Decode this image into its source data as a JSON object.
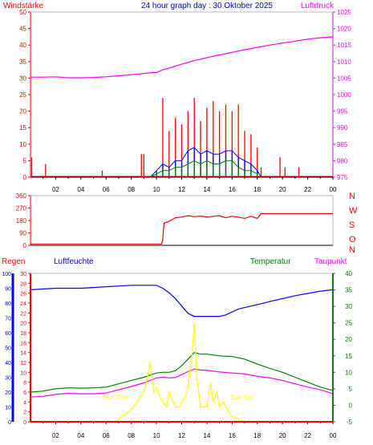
{
  "title": "24 hour graph day : 30 Oktober 2025",
  "x_ticks": [
    "02",
    "04",
    "06",
    "08",
    "10",
    "12",
    "14",
    "16",
    "18",
    "20",
    "22",
    "00"
  ],
  "chart_data": [
    {
      "type": "line",
      "title": "24 hour graph day : 30 Oktober 2025",
      "panel": "wind_pressure",
      "left_axis_label": "Windstärke",
      "right_axis_label": "Luftdruck",
      "left_ticks": [
        "50",
        "45",
        "40",
        "35",
        "30",
        "25",
        "20",
        "15",
        "10",
        "5",
        "0"
      ],
      "right_ticks": [
        "1025",
        "1020",
        "1015",
        "1010",
        "1005",
        "1000",
        "995",
        "990",
        "985",
        "980",
        "975"
      ],
      "ylim_left": [
        0,
        50
      ],
      "ylim_right": [
        975,
        1025
      ],
      "x_range_hours": [
        0,
        24
      ],
      "colors": {
        "gust": "#ff0000",
        "wind": "#008000",
        "avg": "#0000ff",
        "pressure": "#ff00ff"
      },
      "series": [
        {
          "name": "Luftdruck",
          "color": "#ff00ff",
          "x": [
            0,
            1,
            2,
            3,
            4,
            5,
            6,
            7,
            8,
            9,
            9.5,
            10,
            10.5,
            11,
            12,
            13,
            14,
            15,
            16,
            17,
            18,
            19,
            20,
            21,
            22,
            23,
            24
          ],
          "y": [
            1005.3,
            1005.3,
            1005.4,
            1005.1,
            1005.1,
            1005.2,
            1005.4,
            1005.7,
            1006,
            1006.4,
            1006.6,
            1006.7,
            1007.5,
            1008,
            1009.2,
            1010.3,
            1011.2,
            1012,
            1012.8,
            1013.6,
            1014.3,
            1015,
            1015.6,
            1016.2,
            1016.8,
            1017.2,
            1017.5
          ]
        },
        {
          "name": "Böen",
          "color": "#ff0000",
          "x": [
            0.1,
            1.2,
            5.7,
            8.8,
            9,
            10.5,
            11,
            11.5,
            12,
            12.5,
            13,
            13.5,
            14,
            14.5,
            15,
            15.5,
            16,
            16.5,
            17,
            17.5,
            18,
            18.3,
            19.8,
            20.2,
            21.3
          ],
          "y": [
            6,
            4,
            2,
            7,
            7,
            24,
            14,
            18,
            16,
            20,
            24,
            17,
            21,
            23,
            20,
            22,
            20,
            22,
            14,
            13,
            9,
            3,
            6,
            3,
            3
          ]
        },
        {
          "name": "Windgeschwindigkeit",
          "color": "#0000ff",
          "x": [
            9.5,
            10,
            10.5,
            11,
            11.5,
            12,
            12.5,
            13,
            13.5,
            14,
            14.5,
            15,
            15.5,
            16,
            16.5,
            17,
            17.5,
            18,
            18.3
          ],
          "y": [
            0,
            2,
            4,
            3,
            5,
            5,
            8,
            9,
            7,
            8,
            7,
            7,
            8,
            8,
            6,
            5,
            4,
            2,
            0
          ]
        },
        {
          "name": "Wind",
          "color": "#008000",
          "x": [
            9.5,
            10,
            10.5,
            11,
            11.5,
            12,
            12.5,
            13,
            13.5,
            14,
            14.5,
            15,
            15.5,
            16,
            16.5,
            17,
            17.5,
            18
          ],
          "y": [
            0,
            1,
            2,
            2,
            3,
            3,
            4,
            5,
            4,
            5,
            4,
            4,
            5,
            5,
            3,
            2,
            2,
            1
          ]
        }
      ]
    },
    {
      "type": "line",
      "panel": "wind_direction",
      "left_ticks": [
        "360",
        "270",
        "180",
        "90",
        "0"
      ],
      "right_labels": [
        "N",
        "W",
        "S",
        "O",
        "N"
      ],
      "ylim": [
        0,
        360
      ],
      "x_range_hours": [
        0,
        24
      ],
      "series": [
        {
          "name": "Windrichtung",
          "color": "#ff0000",
          "x": [
            0,
            10.4,
            10.5,
            10.55,
            10.6,
            11,
            11.5,
            12,
            12.5,
            13,
            13.5,
            14,
            14.5,
            15,
            15.5,
            16,
            16.5,
            17,
            17.5,
            18,
            18.3,
            24
          ],
          "y": [
            10,
            10,
            40,
            110,
            160,
            175,
            200,
            205,
            215,
            208,
            212,
            205,
            210,
            215,
            200,
            210,
            205,
            195,
            210,
            195,
            230,
            230
          ]
        }
      ]
    },
    {
      "type": "line",
      "panel": "humidity_temperature_rain",
      "labels": {
        "rain": "Regen",
        "humidity": "Luftfeuchte",
        "temperature": "Temperatur",
        "dewpoint": "Taupunkt"
      },
      "humidity_ticks": [
        "100",
        "90",
        "80",
        "70",
        "60",
        "50",
        "40",
        "30",
        "20",
        "10",
        "0"
      ],
      "rain_ticks": [
        "30",
        "28",
        "26",
        "24",
        "22",
        "20",
        "18",
        "16",
        "14",
        "12",
        "10",
        "8",
        "6",
        "4",
        "2",
        "0"
      ],
      "temp_ticks": [
        "40",
        "35",
        "30",
        "25",
        "20",
        "15",
        "10",
        "5",
        "0",
        "-5"
      ],
      "ylim_humidity": [
        0,
        100
      ],
      "ylim_rain": [
        0,
        30
      ],
      "ylim_temp": [
        -5,
        40
      ],
      "x_range_hours": [
        0,
        24
      ],
      "colors": {
        "humidity": "#0000ff",
        "temperature": "#008000",
        "dewpoint": "#ff00ff",
        "solar": "#ffff00",
        "rain": "#ff0000"
      },
      "annotations": {
        "sunrise": "Sun Rise",
        "sunset": "Sun Set",
        "sunrise_hour": 6.8,
        "sunset_hour": 16.8
      },
      "series": [
        {
          "name": "Luftfeuchte",
          "color": "#0000ff",
          "x": [
            0,
            1,
            2,
            3,
            4,
            5,
            6,
            7,
            8,
            9,
            10,
            10.5,
            11,
            11.5,
            12,
            12.5,
            13,
            13.5,
            14,
            14.5,
            15,
            15.5,
            16,
            16.5,
            17,
            18,
            19,
            20,
            21,
            22,
            23,
            24
          ],
          "y": [
            89,
            89.5,
            90,
            90,
            90,
            90.5,
            91,
            91.5,
            92,
            92,
            92,
            90,
            87,
            83,
            78,
            73,
            71,
            71,
            71,
            71,
            71,
            72,
            74,
            76,
            77,
            79,
            81,
            83,
            85,
            86.5,
            88,
            89
          ]
        },
        {
          "name": "Temperatur",
          "color": "#008000",
          "x": [
            0,
            1,
            2,
            3,
            4,
            5,
            6,
            7,
            8,
            9,
            10,
            10.5,
            11,
            11.5,
            12,
            12.5,
            13,
            13.5,
            14,
            15,
            16,
            17,
            18,
            19,
            20,
            21,
            22,
            23,
            24
          ],
          "y": [
            4,
            4.3,
            5,
            5.3,
            5.2,
            5.3,
            5.5,
            6.5,
            7.5,
            8.5,
            9.8,
            10,
            10,
            10.5,
            12,
            14,
            16,
            15.5,
            15.5,
            15,
            14.8,
            14,
            12.5,
            11.2,
            10,
            8.5,
            7,
            5.5,
            4.5
          ]
        },
        {
          "name": "Taupunkt",
          "color": "#ff00ff",
          "x": [
            0,
            1,
            2,
            3,
            4,
            5,
            6,
            7,
            8,
            9,
            10,
            10.5,
            11,
            11.5,
            12,
            12.5,
            13,
            13.5,
            14,
            15,
            16,
            17,
            18,
            19,
            20,
            21,
            22,
            23,
            24
          ],
          "y": [
            2.5,
            2.7,
            3.3,
            3.6,
            3.5,
            3.5,
            3.7,
            4.7,
            5.7,
            6.8,
            8.3,
            8.5,
            8.3,
            8.4,
            9.3,
            10.2,
            11,
            10.7,
            10.6,
            10.1,
            9.8,
            9.5,
            8.8,
            8.3,
            7.5,
            6.5,
            5.5,
            4.7,
            3.5
          ]
        },
        {
          "name": "Sonnenstrahlung",
          "color": "#ffff00",
          "x": [
            6.8,
            7.2,
            7.5,
            8,
            8.5,
            9,
            9.3,
            9.5,
            9.8,
            10,
            10.3,
            10.5,
            10.8,
            11,
            11.3,
            11.5,
            11.8,
            12,
            12.3,
            12.5,
            12.8,
            13,
            13.2,
            13.5,
            13.8,
            14,
            14.3,
            14.5,
            14.8,
            15,
            15.3,
            15.5,
            16,
            16.5,
            16.8
          ],
          "y": [
            0,
            1,
            1.5,
            2.5,
            4,
            6,
            9,
            12,
            6,
            7,
            5,
            4,
            3,
            6,
            4,
            3,
            3,
            4,
            5,
            7,
            13,
            20,
            9,
            3,
            3,
            3,
            8,
            4,
            6,
            3,
            4,
            3,
            1,
            0.5,
            0
          ]
        },
        {
          "name": "Regen",
          "color": "#ff0000",
          "x": [
            0,
            24
          ],
          "y": [
            0,
            0
          ]
        }
      ]
    }
  ]
}
